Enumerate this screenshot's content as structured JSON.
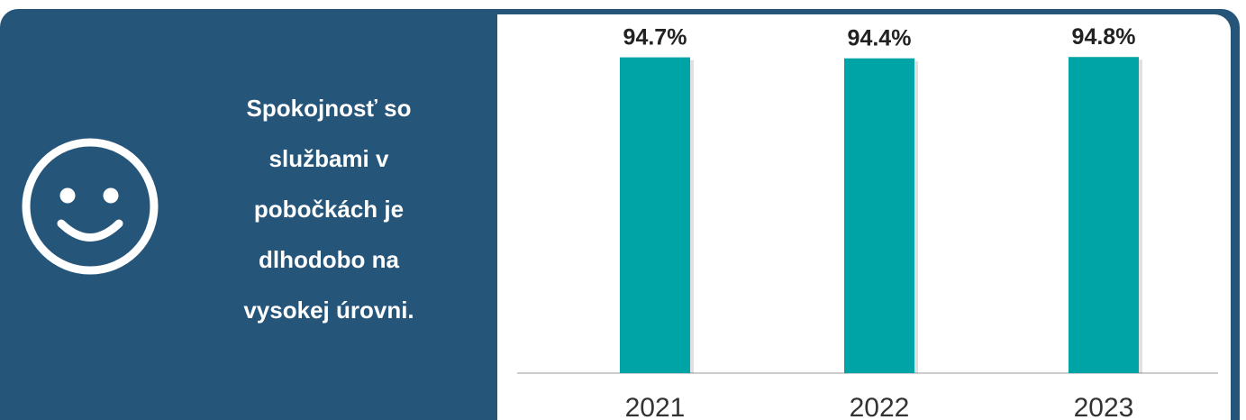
{
  "headline": {
    "lines": [
      "Spokojnosť so",
      "službami v",
      "pobočkách je",
      "dlhodobo na",
      "vysokej úrovni."
    ]
  },
  "icons": {
    "smiley": "smiley-face-icon"
  },
  "colors": {
    "panel_background": "#26557a",
    "bar_color": "#00a3a6",
    "text_dark": "#222222",
    "axis_line": "#cccccc"
  },
  "chart_data": {
    "type": "bar",
    "categories": [
      "2021",
      "2022",
      "2023"
    ],
    "values": [
      94.7,
      94.4,
      94.8
    ],
    "data_labels": [
      "94.7%",
      "94.4%",
      "94.8%"
    ],
    "ylim": [
      0,
      100
    ],
    "grid": false,
    "legend": "none"
  }
}
